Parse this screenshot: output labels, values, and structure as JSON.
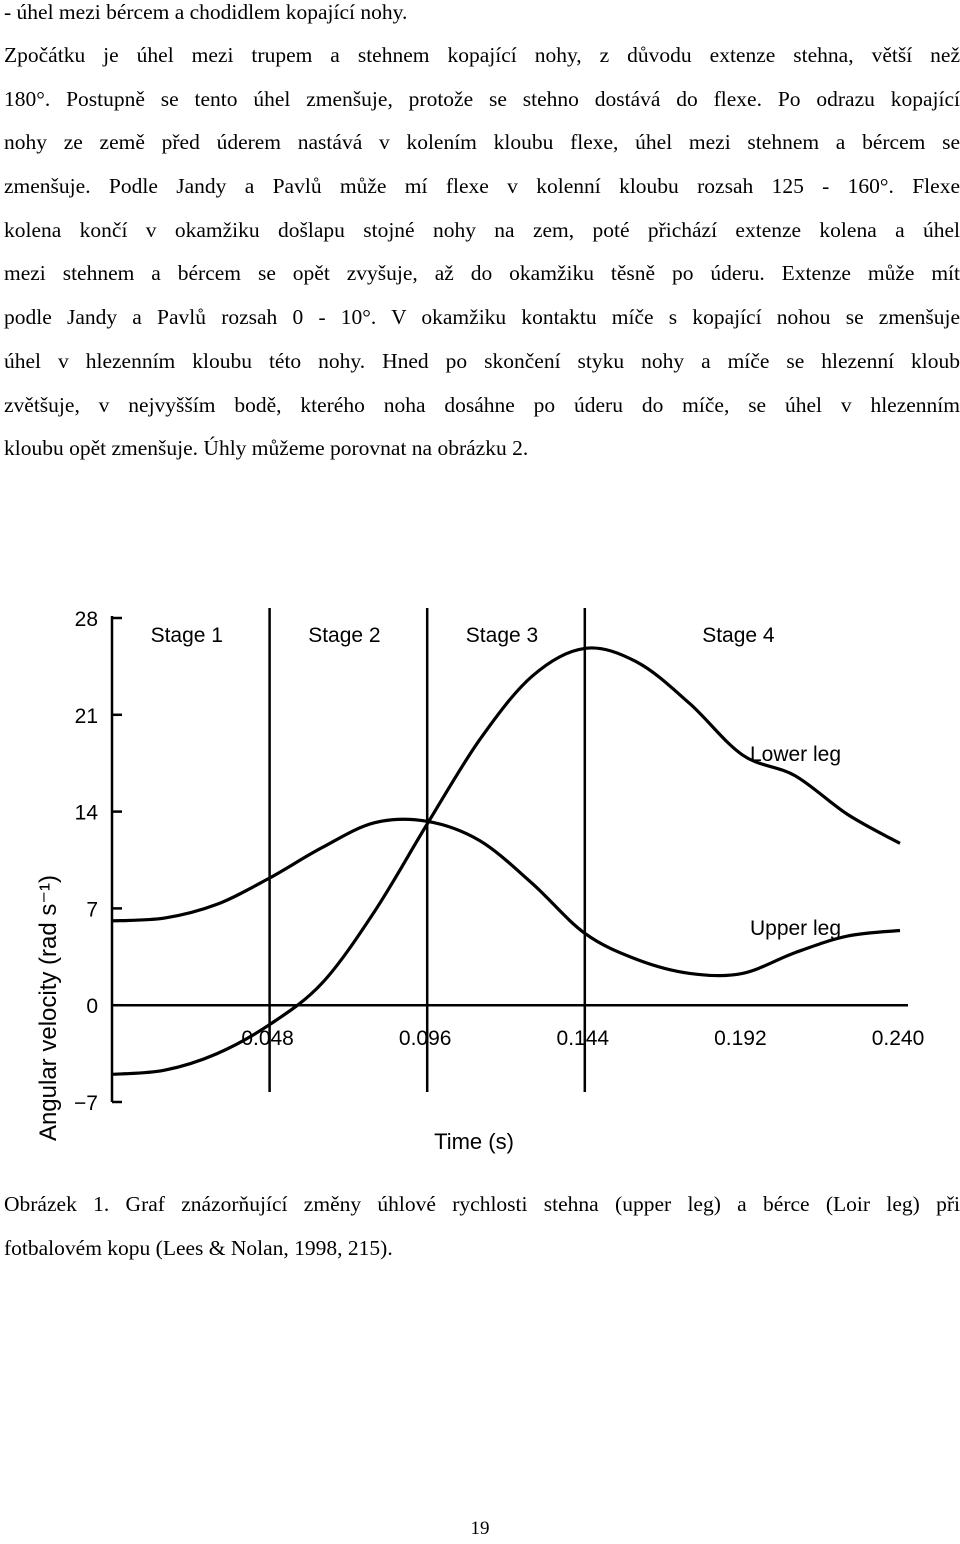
{
  "paragraph_lines": [
    "- úhel mezi bércem a chodidlem kopající nohy.",
    "Zpočátku je úhel mezi trupem a stehnem kopající nohy, z důvodu extenze stehna, větší než",
    "180°. Postupně se tento úhel zmenšuje, protože se stehno dostává do flexe. Po odrazu kopající",
    "nohy ze země před úderem nastává v kolením kloubu flexe, úhel mezi stehnem a bércem se",
    "zmenšuje. Podle Jandy a Pavlů může mí flexe v kolenní kloubu rozsah 125 - 160°. Flexe",
    "kolena končí v okamžiku došlapu stojné nohy na zem, poté přichází extenze kolena a úhel",
    "mezi stehnem a bércem se opět zvyšuje, až do okamžiku těsně po úderu. Extenze může mít",
    "podle Jandy a Pavlů rozsah 0 - 10°. V okamžiku kontaktu míče s kopající nohou se zmenšuje",
    "úhel v hlezenním kloubu této nohy. Hned po skončení styku nohy a míče se hlezenní kloub",
    "zvětšuje, v nejvyšším bodě, kterého noha dosáhne po úderu do míče, se úhel v hlezenním",
    "kloubu opět zmenšuje. Úhly můžeme porovnat na obrázku 2."
  ],
  "caption_lines": [
    "Obrázek 1. Graf znázorňující změny úhlové rychlosti stehna (upper leg) a bérce (Loir leg) při",
    "fotbalovém kopu (Lees & Nolan, 1998, 215)."
  ],
  "page_number": "19",
  "chart_data": {
    "type": "line",
    "xlabel": "Time (s)",
    "ylabel": "Angular velocity (rad s⁻¹)",
    "xlim": [
      0,
      0.24
    ],
    "ylim": [
      -7,
      28
    ],
    "x_ticks": [
      {
        "value": 0.048,
        "label": "0.048"
      },
      {
        "value": 0.096,
        "label": "0.096"
      },
      {
        "value": 0.144,
        "label": "0.144"
      },
      {
        "value": 0.192,
        "label": "0.192"
      },
      {
        "value": 0.24,
        "label": "0.240"
      }
    ],
    "y_ticks": [
      {
        "value": 28,
        "label": "28"
      },
      {
        "value": 21,
        "label": "21"
      },
      {
        "value": 14,
        "label": "14"
      },
      {
        "value": 7,
        "label": "7"
      },
      {
        "value": 0,
        "label": "0"
      },
      {
        "value": -7,
        "label": "−7"
      }
    ],
    "stage_boundaries": [
      0.048,
      0.096,
      0.144
    ],
    "stages": [
      {
        "label": "Stage 1",
        "x": 0.024
      },
      {
        "label": "Stage 2",
        "x": 0.072
      },
      {
        "label": "Stage 3",
        "x": 0.12
      },
      {
        "label": "Stage 4",
        "x": 0.192
      }
    ],
    "series": [
      {
        "name": "Lower leg",
        "points": [
          [
            0,
            -5
          ],
          [
            0.016,
            -4.7
          ],
          [
            0.032,
            -3.5
          ],
          [
            0.048,
            -1.4
          ],
          [
            0.064,
            1.6
          ],
          [
            0.08,
            6.8
          ],
          [
            0.096,
            13.1
          ],
          [
            0.112,
            19.2
          ],
          [
            0.128,
            23.8
          ],
          [
            0.144,
            25.8
          ],
          [
            0.16,
            24.8
          ],
          [
            0.176,
            21.8
          ],
          [
            0.192,
            18.1
          ],
          [
            0.208,
            16.6
          ],
          [
            0.224,
            13.8
          ],
          [
            0.24,
            11.7
          ]
        ],
        "label_at": [
          0.21,
          18.1
        ]
      },
      {
        "name": "Upper leg",
        "points": [
          [
            0,
            6.1
          ],
          [
            0.016,
            6.3
          ],
          [
            0.032,
            7.3
          ],
          [
            0.048,
            9.2
          ],
          [
            0.064,
            11.4
          ],
          [
            0.08,
            13.2
          ],
          [
            0.096,
            13.3
          ],
          [
            0.112,
            11.9
          ],
          [
            0.128,
            8.8
          ],
          [
            0.144,
            5.2
          ],
          [
            0.16,
            3.3
          ],
          [
            0.176,
            2.3
          ],
          [
            0.192,
            2.3
          ],
          [
            0.208,
            3.8
          ],
          [
            0.224,
            5.0
          ],
          [
            0.24,
            5.4
          ]
        ],
        "label_at": [
          0.21,
          5.5
        ]
      }
    ]
  }
}
